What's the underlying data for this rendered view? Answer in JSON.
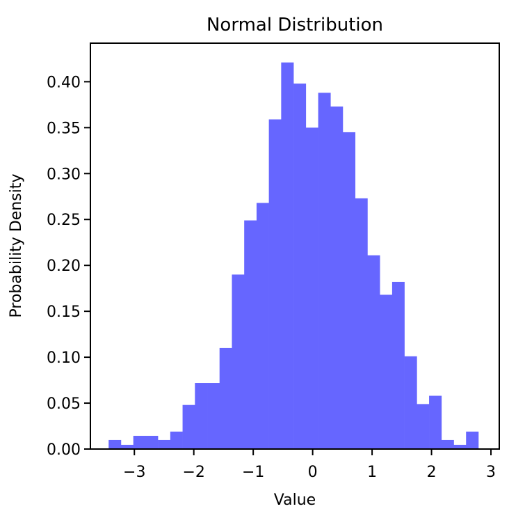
{
  "chart_data": {
    "type": "bar",
    "subtype": "histogram",
    "title": "Normal Distribution",
    "xlabel": "Value",
    "ylabel": "Probability Density",
    "xlim": [
      -3.74,
      3.14
    ],
    "ylim": [
      0.0,
      0.442
    ],
    "grid": false,
    "legend": null,
    "bar_color": "#6666ff",
    "bins": 30,
    "bin_start": -3.433,
    "bin_end": 2.789,
    "x_ticks": [
      -3,
      -2,
      -1,
      0,
      1,
      2,
      3
    ],
    "x_tick_labels": [
      "−3",
      "−2",
      "−1",
      "0",
      "1",
      "2",
      "3"
    ],
    "y_ticks": [
      0.0,
      0.05,
      0.1,
      0.15,
      0.2,
      0.25,
      0.3,
      0.35,
      0.4
    ],
    "y_tick_labels": [
      "0.00",
      "0.05",
      "0.10",
      "0.15",
      "0.20",
      "0.25",
      "0.30",
      "0.35",
      "0.40"
    ],
    "bin_edges": [
      -3.433,
      -3.226,
      -3.018,
      -2.811,
      -2.604,
      -2.396,
      -2.189,
      -1.981,
      -1.774,
      -1.567,
      -1.359,
      -1.152,
      -0.944,
      -0.737,
      -0.53,
      -0.322,
      -0.115,
      0.093,
      0.3,
      0.507,
      0.715,
      0.922,
      1.13,
      1.337,
      1.544,
      1.752,
      1.959,
      2.167,
      2.374,
      2.581,
      2.789
    ],
    "values": [
      0.0099,
      0.0046,
      0.0144,
      0.0144,
      0.0099,
      0.019,
      0.048,
      0.072,
      0.072,
      0.11,
      0.19,
      0.249,
      0.268,
      0.359,
      0.421,
      0.398,
      0.35,
      0.388,
      0.373,
      0.345,
      0.273,
      0.211,
      0.168,
      0.182,
      0.101,
      0.049,
      0.058,
      0.0099,
      0.0046,
      0.019
    ]
  }
}
